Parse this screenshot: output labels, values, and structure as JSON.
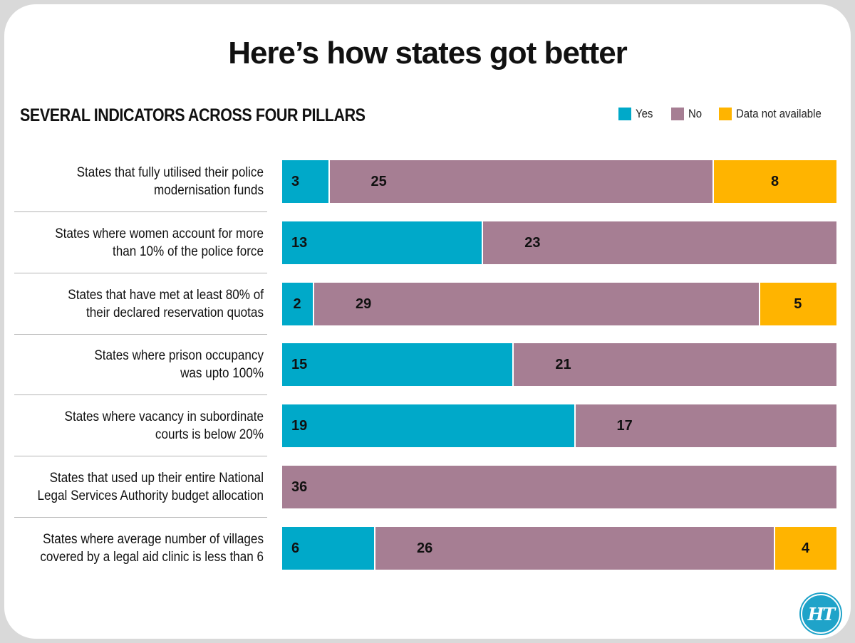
{
  "title": "Here’s how states got better",
  "subtitle": "SEVERAL INDICATORS ACROSS FOUR PILLARS",
  "colors": {
    "Yes": "#00a9c9",
    "No": "#a67e93",
    "Data not available": "#ffb400",
    "background": "#d9d9d9",
    "card": "#ffffff"
  },
  "logo": {
    "text": "HT",
    "icon": "ht-logo-icon"
  },
  "chart_data": {
    "type": "bar",
    "orientation": "horizontal",
    "stacked": true,
    "total": 36,
    "legend_position": "top-right",
    "grid": false,
    "legend": [
      "Yes",
      "No",
      "Data not available"
    ],
    "categories": [
      "States that fully utilised their police modernisation funds",
      "States where women account for more than 10% of the police force",
      "States that have met at least 80% of their declared reservation quotas",
      "States where prison occupancy was upto 100%",
      "States where vacancy in subordinate courts is below 20%",
      "States that used up their entire National Legal Services Authority budget allocation",
      "States where average number of villages covered by a legal aid clinic is less than 6"
    ],
    "category_lines": [
      [
        "States that fully utilised their police",
        "modernisation funds"
      ],
      [
        "States where women account for more",
        "than 10% of the police force"
      ],
      [
        "States that have met at least 80% of",
        "their declared reservation quotas"
      ],
      [
        "States where prison occupancy",
        "was upto 100%"
      ],
      [
        "States where vacancy in subordinate",
        "courts is below 20%"
      ],
      [
        "States that used up their entire National",
        "Legal Services Authority budget allocation"
      ],
      [
        "States where average number of villages",
        "covered by a legal aid clinic is less than 6"
      ]
    ],
    "series": [
      {
        "name": "Yes",
        "values": [
          3,
          13,
          2,
          15,
          19,
          0,
          6
        ]
      },
      {
        "name": "No",
        "values": [
          25,
          23,
          29,
          21,
          17,
          36,
          26
        ]
      },
      {
        "name": "Data not available",
        "values": [
          8,
          0,
          5,
          0,
          0,
          0,
          4
        ]
      }
    ]
  }
}
